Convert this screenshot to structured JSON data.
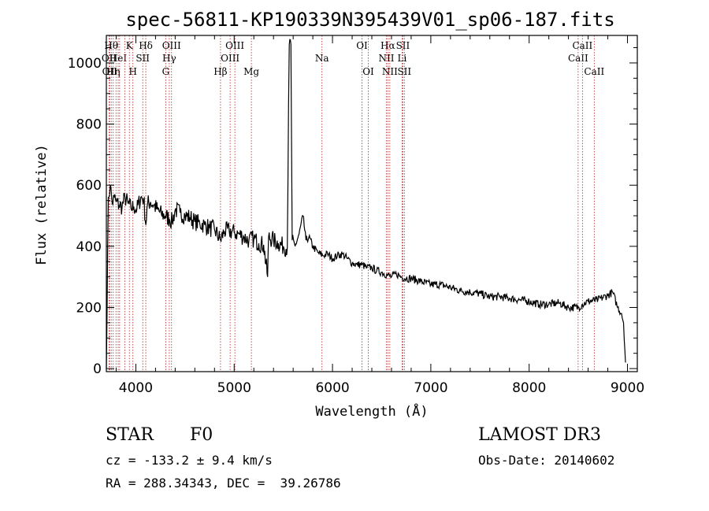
{
  "chart_data": {
    "type": "line",
    "title": "spec-56811-KP190339N395439V01_sp06-187.fits",
    "xlabel": "Wavelength (Å)",
    "ylabel": "Flux (relative)",
    "xlim": [
      3700,
      9100
    ],
    "ylim": [
      -10,
      1090
    ],
    "xticks": [
      4000,
      5000,
      6000,
      7000,
      8000,
      9000
    ],
    "yticks": [
      0,
      200,
      400,
      600,
      800,
      1000
    ],
    "series": [
      {
        "name": "spectrum",
        "x": [
          3700,
          3720,
          3740,
          3760,
          3780,
          3800,
          3830,
          3860,
          3890,
          3920,
          3950,
          3980,
          4010,
          4050,
          4080,
          4101,
          4120,
          4150,
          4180,
          4220,
          4260,
          4300,
          4340,
          4370,
          4400,
          4450,
          4500,
          4550,
          4600,
          4650,
          4700,
          4750,
          4800,
          4861,
          4900,
          4950,
          5000,
          5050,
          5100,
          5150,
          5200,
          5250,
          5300,
          5340,
          5350,
          5400,
          5450,
          5500,
          5540,
          5560,
          5577,
          5590,
          5620,
          5660,
          5700,
          5730,
          5760,
          5800,
          5850,
          5900,
          5950,
          6000,
          6050,
          6100,
          6150,
          6200,
          6250,
          6300,
          6350,
          6400,
          6450,
          6500,
          6563,
          6600,
          6650,
          6700,
          6750,
          6800,
          6900,
          7000,
          7100,
          7200,
          7300,
          7400,
          7500,
          7600,
          7700,
          7800,
          7900,
          8000,
          8100,
          8200,
          8300,
          8400,
          8500,
          8542,
          8600,
          8700,
          8800,
          8850,
          8900,
          8940,
          8960,
          8980
        ],
        "y": [
          0,
          560,
          600,
          540,
          560,
          545,
          535,
          530,
          560,
          540,
          525,
          530,
          520,
          560,
          555,
          470,
          540,
          545,
          535,
          520,
          505,
          500,
          490,
          480,
          520,
          510,
          500,
          495,
          480,
          475,
          470,
          460,
          455,
          420,
          450,
          450,
          445,
          440,
          430,
          420,
          425,
          410,
          405,
          300,
          430,
          420,
          410,
          400,
          395,
          1060,
          1060,
          420,
          400,
          440,
          500,
          420,
          430,
          400,
          380,
          370,
          375,
          360,
          370,
          375,
          360,
          345,
          340,
          340,
          330,
          330,
          320,
          315,
          305,
          300,
          310,
          300,
          295,
          295,
          285,
          275,
          275,
          265,
          255,
          250,
          245,
          235,
          235,
          230,
          225,
          220,
          210,
          210,
          215,
          200,
          200,
          210,
          220,
          225,
          240,
          250,
          200,
          180,
          150,
          20
        ]
      }
    ],
    "lines": [
      {
        "x": 3728,
        "label": "OII",
        "row": 2
      },
      {
        "x": 3734,
        "label": "OII",
        "row": 3
      },
      {
        "x": 3750,
        "label": "Hθ",
        "row": 1
      },
      {
        "x": 3770,
        "label": "Hη",
        "row": 3
      },
      {
        "x": 3798,
        "label": "",
        "row": 0
      },
      {
        "x": 3820,
        "label": "HeI",
        "row": 2
      },
      {
        "x": 3835,
        "label": "",
        "row": 0
      },
      {
        "x": 3889,
        "label": "",
        "row": 0
      },
      {
        "x": 3934,
        "label": "K",
        "row": 1
      },
      {
        "x": 3970,
        "label": "H",
        "row": 3
      },
      {
        "x": 4070,
        "label": "SII",
        "row": 2
      },
      {
        "x": 4101,
        "label": "Hδ",
        "row": 1
      },
      {
        "x": 4304,
        "label": "G",
        "row": 3
      },
      {
        "x": 4340,
        "label": "Hγ",
        "row": 2
      },
      {
        "x": 4363,
        "label": "OIII",
        "row": 1
      },
      {
        "x": 4861,
        "label": "Hβ",
        "row": 3
      },
      {
        "x": 4959,
        "label": "OIII",
        "row": 2
      },
      {
        "x": 5007,
        "label": "OIII",
        "row": 1
      },
      {
        "x": 5175,
        "label": "Mg",
        "row": 3
      },
      {
        "x": 5893,
        "label": "Na",
        "row": 2
      },
      {
        "x": 6300,
        "label": "OI",
        "row": 1
      },
      {
        "x": 6364,
        "label": "OI",
        "row": 3
      },
      {
        "x": 6548,
        "label": "NII",
        "row": 2
      },
      {
        "x": 6563,
        "label": "Hα",
        "row": 1
      },
      {
        "x": 6583,
        "label": "NII",
        "row": 3
      },
      {
        "x": 6708,
        "label": "Li",
        "row": 2
      },
      {
        "x": 6716,
        "label": "SII",
        "row": 1
      },
      {
        "x": 6731,
        "label": "SII",
        "row": 3
      },
      {
        "x": 8498,
        "label": "CaII",
        "row": 2
      },
      {
        "x": 8542,
        "label": "CaII",
        "row": 1
      },
      {
        "x": 8662,
        "label": "CaII",
        "row": 3
      }
    ],
    "colors": {
      "line": "#000000",
      "marker": "#b22222"
    }
  },
  "info": {
    "class_label": "STAR",
    "subclass_label": "F0",
    "survey_label": "LAMOST DR3",
    "cz_text": "cz = -133.2 ± 9.4 km/s",
    "obs_date_text": "Obs-Date: 20140602",
    "radec_text": "RA = 288.34343, DEC =  39.26786"
  }
}
